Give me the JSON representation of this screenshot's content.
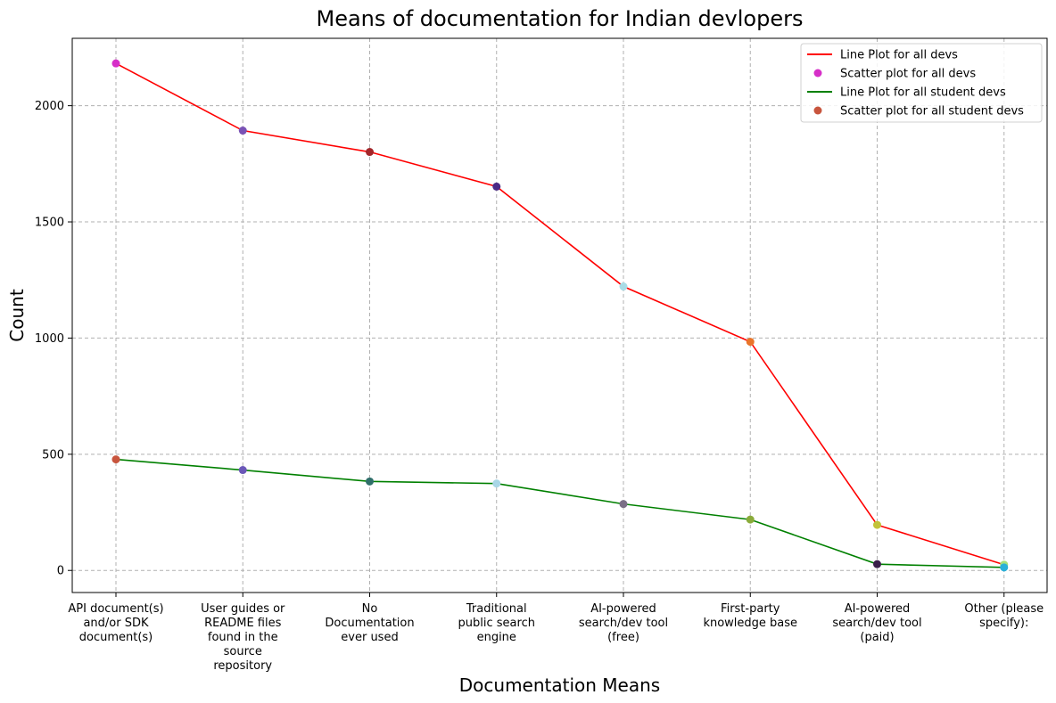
{
  "chart_data": {
    "type": "line",
    "title": "Means of documentation for Indian devlopers",
    "xlabel": "Documentation Means",
    "ylabel": "Count",
    "ylim": [
      -95,
      2290
    ],
    "yticks": [
      0,
      500,
      1000,
      1500,
      2000
    ],
    "grid": true,
    "legend_position": "top-right",
    "categories": [
      [
        "API document(s)",
        "and/or SDK",
        "document(s)"
      ],
      [
        "User guides or",
        "README files",
        "found in the",
        "source",
        "repository"
      ],
      [
        "No",
        "Documentation",
        "ever used"
      ],
      [
        "Traditional",
        "public search",
        "engine"
      ],
      [
        "AI-powered",
        "search/dev tool",
        "(free)"
      ],
      [
        "First-party",
        "knowledge base"
      ],
      [
        "AI-powered",
        "search/dev tool",
        "(paid)"
      ],
      [
        "Other (please",
        "specify):"
      ]
    ],
    "series": [
      {
        "name": "Line Plot for all devs",
        "kind": "line",
        "color": "#ff0000",
        "values": [
          2182,
          1893,
          1801,
          1652,
          1222,
          984,
          196,
          25
        ]
      },
      {
        "name": "Scatter plot for all devs",
        "kind": "scatter",
        "legend_color": "#d62fc8",
        "point_colors": [
          "#d62fc8",
          "#7a52b5",
          "#a3262a",
          "#4a2a86",
          "#a8dce6",
          "#e9752a",
          "#c2c23a",
          "#a6e07a"
        ],
        "values": [
          2182,
          1893,
          1801,
          1652,
          1222,
          984,
          196,
          25
        ]
      },
      {
        "name": "Line Plot for all student devs",
        "kind": "line",
        "color": "#008000",
        "values": [
          478,
          432,
          383,
          374,
          286,
          219,
          27,
          13
        ]
      },
      {
        "name": "Scatter plot for all student devs",
        "kind": "scatter",
        "legend_color": "#c8553d",
        "point_colors": [
          "#c8553d",
          "#6b58b8",
          "#2f6f6a",
          "#a9d6e6",
          "#7a6e86",
          "#8aab3a",
          "#3a1f4a",
          "#2ab0d8"
        ],
        "values": [
          478,
          432,
          383,
          374,
          286,
          219,
          27,
          13
        ]
      }
    ]
  }
}
